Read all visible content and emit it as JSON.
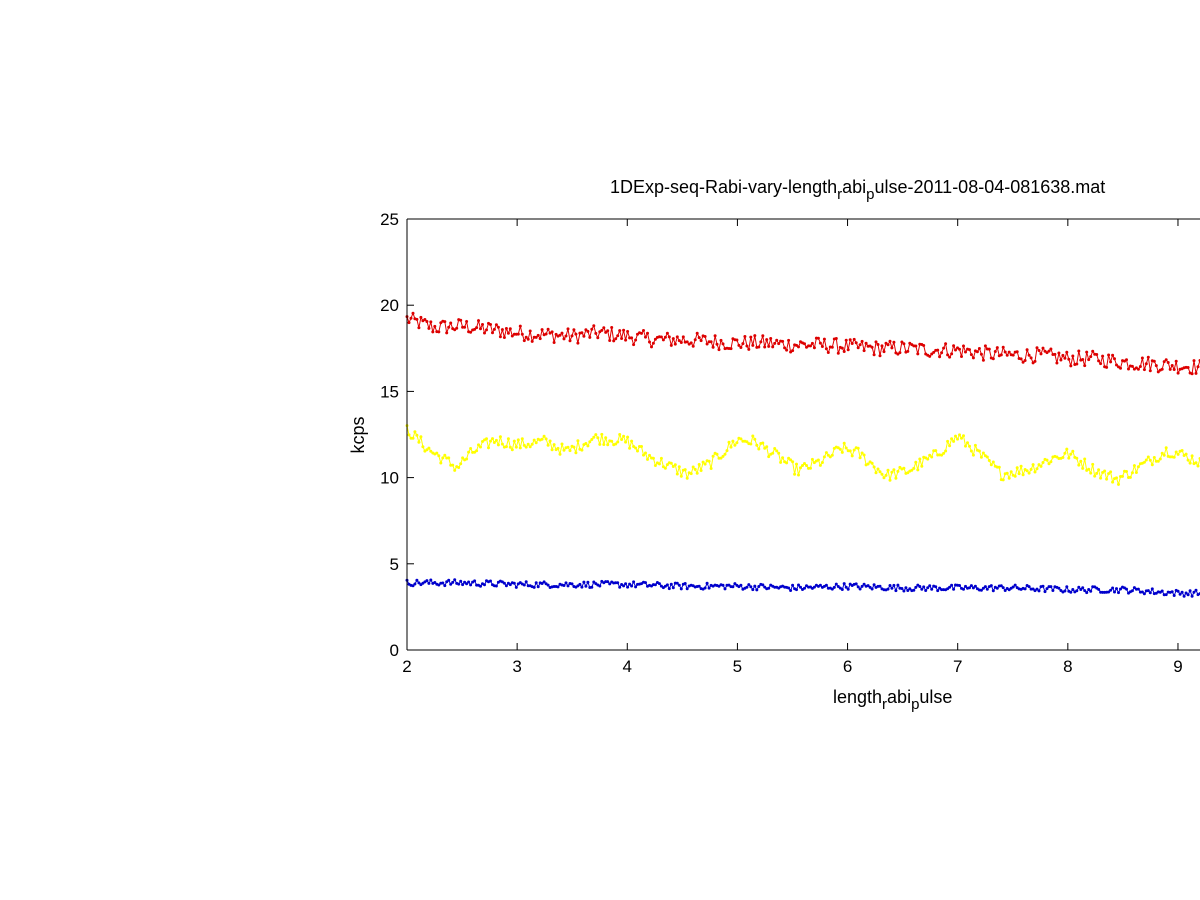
{
  "chart_data": {
    "type": "line",
    "title_parts": [
      "1DExp-seq-Rabi-vary-length",
      "r",
      "abi",
      "p",
      "ulse-2011-08-04-081638.mat"
    ],
    "xlabel_parts": [
      "length",
      "r",
      "abi",
      "p",
      "ulse"
    ],
    "ylabel": "kcps",
    "xlim": [
      2,
      9.2
    ],
    "ylim": [
      0,
      25
    ],
    "xticks": [
      2,
      3,
      4,
      5,
      6,
      7,
      8,
      9
    ],
    "yticks": [
      0,
      5,
      10,
      15,
      20,
      25
    ],
    "grid": false,
    "marker": "dot",
    "n_points": 400,
    "series": [
      {
        "color": "#dd0000",
        "x": [
          2.0,
          2.25,
          2.5,
          2.75,
          3.0,
          3.25,
          3.5,
          3.75,
          4.0,
          4.25,
          4.5,
          4.75,
          5.0,
          5.25,
          5.5,
          5.75,
          6.0,
          6.25,
          6.5,
          6.75,
          7.0,
          7.25,
          7.5,
          7.75,
          8.0,
          8.25,
          8.5,
          8.75,
          9.0,
          9.2
        ],
        "y": [
          19.2,
          18.7,
          18.8,
          18.6,
          18.4,
          18.3,
          18.2,
          18.4,
          18.2,
          18.0,
          18.0,
          17.9,
          17.8,
          17.8,
          17.7,
          17.7,
          17.6,
          17.5,
          17.5,
          17.4,
          17.4,
          17.2,
          17.1,
          17.1,
          16.9,
          16.9,
          16.7,
          16.6,
          16.5,
          16.4
        ]
      },
      {
        "color": "#ffff00",
        "x": [
          2.0,
          2.2,
          2.45,
          2.6,
          2.8,
          3.0,
          3.25,
          3.45,
          3.7,
          3.9,
          4.0,
          4.2,
          4.4,
          4.55,
          4.75,
          5.0,
          5.15,
          5.35,
          5.55,
          5.75,
          5.95,
          6.1,
          6.35,
          6.55,
          6.8,
          7.0,
          7.15,
          7.4,
          7.65,
          7.85,
          8.0,
          8.25,
          8.45,
          8.7,
          8.9,
          9.05,
          9.2
        ],
        "y": [
          12.8,
          11.6,
          10.6,
          11.5,
          12.2,
          11.9,
          12.1,
          11.5,
          12.3,
          12.2,
          12.1,
          11.2,
          10.6,
          10.2,
          10.8,
          12.2,
          12.1,
          11.3,
          10.4,
          10.9,
          11.7,
          11.4,
          10.1,
          10.4,
          11.3,
          12.4,
          11.6,
          10.2,
          10.5,
          11.1,
          11.4,
          10.4,
          9.9,
          10.8,
          11.6,
          11.3,
          10.9
        ]
      },
      {
        "color": "#0000cc",
        "x": [
          2.0,
          2.5,
          3.0,
          3.5,
          4.0,
          4.5,
          5.0,
          5.5,
          6.0,
          6.5,
          7.0,
          7.5,
          8.0,
          8.5,
          9.0,
          9.2
        ],
        "y": [
          3.9,
          3.9,
          3.8,
          3.8,
          3.8,
          3.7,
          3.7,
          3.6,
          3.7,
          3.6,
          3.6,
          3.6,
          3.5,
          3.5,
          3.3,
          3.3
        ]
      }
    ]
  }
}
